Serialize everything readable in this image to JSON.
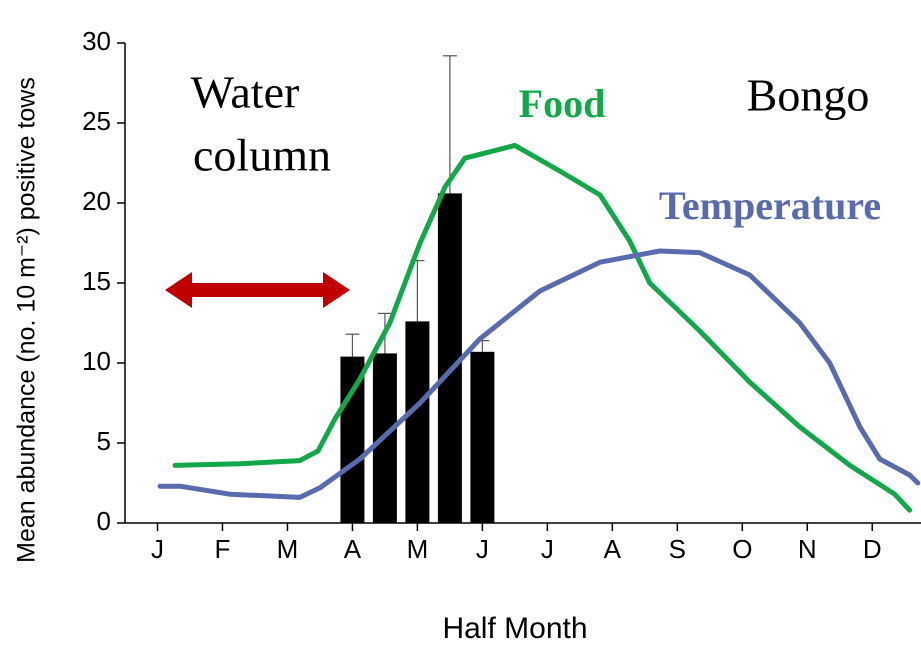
{
  "chart_data": {
    "type": "bar",
    "xlabel": "Half Month",
    "ylabel": "Mean abundance (no. 10 m⁻²) positive tows",
    "annotations": [
      "Water",
      "column",
      "Bongo"
    ],
    "xlim": [
      0,
      24.5
    ],
    "ylim": [
      0,
      30
    ],
    "yticks": [
      0,
      5,
      10,
      15,
      20,
      25,
      30
    ],
    "xticks": [
      {
        "value": 1,
        "label": "J"
      },
      {
        "value": 3,
        "label": "F"
      },
      {
        "value": 5,
        "label": "M"
      },
      {
        "value": 7,
        "label": "A"
      },
      {
        "value": 9,
        "label": "M"
      },
      {
        "value": 11,
        "label": "J"
      },
      {
        "value": 13,
        "label": "J"
      },
      {
        "value": 15,
        "label": "A"
      },
      {
        "value": 17,
        "label": "S"
      },
      {
        "value": 19,
        "label": "O"
      },
      {
        "value": 21,
        "label": "N"
      },
      {
        "value": 23,
        "label": "D"
      }
    ],
    "bars": {
      "color": "#000000",
      "x": [
        7,
        8,
        9,
        10,
        11
      ],
      "values": [
        10.4,
        10.6,
        12.6,
        20.6,
        10.7
      ],
      "errors": [
        1.4,
        2.5,
        3.8,
        8.6,
        0.7
      ]
    },
    "series": [
      {
        "name": "Food",
        "type": "line",
        "color": "#12a84a",
        "x": [
          1.54,
          3.54,
          5.38,
          5.94,
          6.46,
          7.23,
          8.15,
          9.08,
          9.85,
          10.46,
          12.0,
          13.38,
          14.62,
          15.54,
          16.15,
          17.69,
          19.23,
          20.77,
          22.31,
          23.69,
          24.15
        ],
        "values": [
          3.6,
          3.7,
          3.9,
          4.5,
          6.5,
          9,
          12.5,
          17.5,
          21,
          22.8,
          23.6,
          22,
          20.5,
          17.6,
          15,
          12,
          8.8,
          6,
          3.6,
          1.8,
          0.8
        ]
      },
      {
        "name": "Temperature",
        "type": "line",
        "color": "#5a6aaf",
        "x": [
          1.08,
          1.69,
          3.23,
          5.38,
          6.0,
          7.23,
          9.08,
          10.92,
          12.77,
          14.62,
          16.46,
          17.69,
          19.23,
          20.77,
          21.69,
          22.62,
          23.23,
          24.15,
          24.4
        ],
        "values": [
          2.3,
          2.3,
          1.8,
          1.6,
          2.2,
          4,
          7.5,
          11.5,
          14.5,
          16.3,
          17,
          16.9,
          15.5,
          12.5,
          10,
          6,
          4,
          3,
          2.5
        ]
      }
    ]
  }
}
